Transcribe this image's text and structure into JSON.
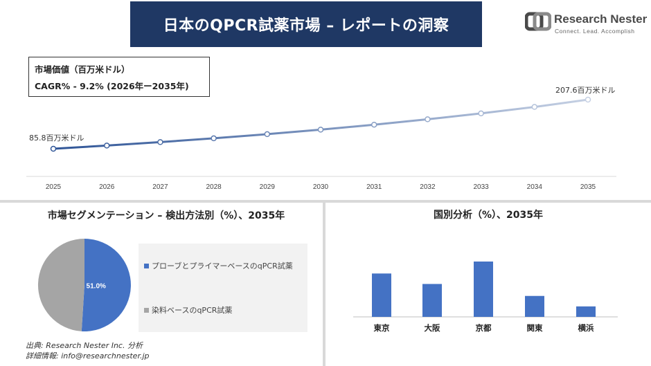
{
  "header": {
    "title": "日本のQPCR試薬市場 – レポートの洞察"
  },
  "logo": {
    "brand": "Research Nester",
    "tagline": "Connect. Lead. Accomplish"
  },
  "info": {
    "line1": "市場価値（百万米ドル）",
    "line2": "CAGR% - 9.2% (2026年ー2035年)"
  },
  "colors": {
    "header_bg": "#1f3864",
    "line_start": "#2f5597",
    "line_end": "#c5d0e3",
    "pie_blue": "#4472c4",
    "pie_gray": "#a5a5a5",
    "bar": "#4472c4"
  },
  "chart_data": [
    {
      "type": "line",
      "x": [
        "2025",
        "2026",
        "2027",
        "2028",
        "2029",
        "2030",
        "2031",
        "2032",
        "2033",
        "2034",
        "2035"
      ],
      "values": [
        85.8,
        93.7,
        102.3,
        111.7,
        122.0,
        133.2,
        145.5,
        158.9,
        173.5,
        189.5,
        207.6
      ],
      "start_label": "85.8百万米ドル",
      "end_label": "207.6百万米ドル",
      "grid": false
    },
    {
      "type": "pie",
      "title": "市場セグメンテーション – 検出方法別（%）、2035年",
      "slices": [
        {
          "name": "プローブとプライマーベースのqPCR試薬",
          "value": 51.0,
          "label": "51.0%"
        },
        {
          "name": "染料ベースのqPCR試薬",
          "value": 49.0,
          "label": ""
        }
      ],
      "legend": "right"
    },
    {
      "type": "bar",
      "title": "国別分析（%）、2035年",
      "categories": [
        "東京",
        "大阪",
        "京都",
        "関東",
        "横浜"
      ],
      "values": [
        29,
        22,
        37,
        14,
        7
      ]
    }
  ],
  "footer": {
    "source": "出典: Research Nester Inc. 分析",
    "contact": "詳細情報: info@researchnester.jp"
  }
}
